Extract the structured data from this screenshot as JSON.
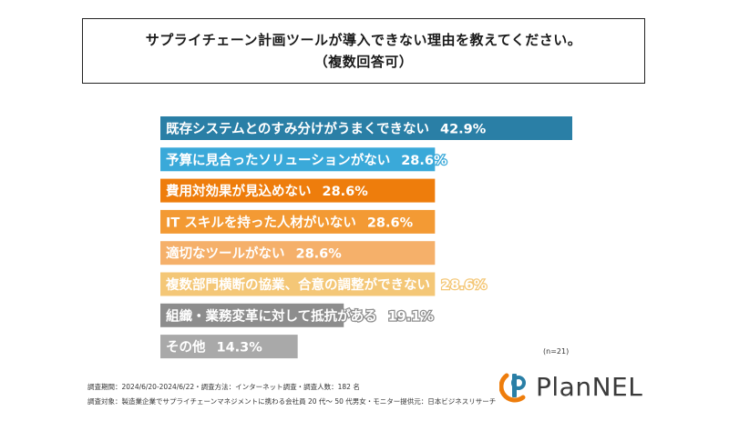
{
  "title": {
    "line1": "サプライチェーン計画ツールが導入できない理由を教えてください。",
    "line2": "（複数回答可）"
  },
  "chart_data": {
    "type": "bar",
    "orientation": "horizontal",
    "unit": "%",
    "categories": [
      "既存システムとのすみ分けがうまくできない",
      "予算に見合ったソリューションがない",
      "費用対効果が見込めない",
      "IT スキルを持った人材がいない",
      "適切なツールがない",
      "複数部門横断の協業、合意の調整ができない",
      "組織・業務変革に対して抵抗がある",
      "その他"
    ],
    "values": [
      42.9,
      28.6,
      28.6,
      28.6,
      28.6,
      28.6,
      19.1,
      14.3
    ],
    "value_labels": [
      "42.9%",
      "28.6%",
      "28.6%",
      "28.6%",
      "28.6%",
      "28.6%",
      "19.1%",
      "14.3%"
    ],
    "colors": [
      "#2a7fa6",
      "#3aa9d9",
      "#ee7d0c",
      "#f39a34",
      "#f5b06a",
      "#f4c777",
      "#8d8d8d",
      "#a9a9a9"
    ],
    "xlim": [
      0,
      42.9
    ]
  },
  "note": "(n=21)",
  "footer": {
    "line1": "調査期間：2024/6/20-2024/6/22・調査方法：インターネット調査・調査人数：182 名",
    "line2": "調査対象：製造業企業でサプライチェーンマネジメントに携わる会社員 20 代～ 50 代男女・モニター提供元：日本ビジネスリサーチ"
  },
  "logo": {
    "text": "PlanNEL",
    "icon": "plannel-logo-icon",
    "colors": [
      "#ee7d0c",
      "#2a7fa6"
    ]
  }
}
